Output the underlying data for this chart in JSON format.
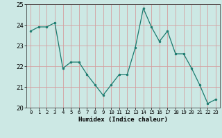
{
  "x": [
    0,
    1,
    2,
    3,
    4,
    5,
    6,
    7,
    8,
    9,
    10,
    11,
    12,
    13,
    14,
    15,
    16,
    17,
    18,
    19,
    20,
    21,
    22,
    23
  ],
  "y": [
    23.7,
    23.9,
    23.9,
    24.1,
    21.9,
    22.2,
    22.2,
    21.6,
    21.1,
    20.6,
    21.1,
    21.6,
    21.6,
    22.9,
    24.8,
    23.9,
    23.2,
    23.7,
    22.6,
    22.6,
    21.9,
    21.1,
    20.2,
    20.4
  ],
  "line_color": "#1a7a6e",
  "marker_color": "#1a7a6e",
  "bg_color": "#cce8e4",
  "grid_color": "#d4a0a0",
  "xlabel": "Humidex (Indice chaleur)",
  "xlim": [
    -0.5,
    23.5
  ],
  "ylim": [
    20.0,
    25.0
  ],
  "yticks": [
    20,
    21,
    22,
    23,
    24,
    25
  ],
  "xtick_labels": [
    "0",
    "1",
    "2",
    "3",
    "4",
    "5",
    "6",
    "7",
    "8",
    "9",
    "10",
    "11",
    "12",
    "13",
    "14",
    "15",
    "16",
    "17",
    "18",
    "19",
    "20",
    "21",
    "22",
    "23"
  ]
}
